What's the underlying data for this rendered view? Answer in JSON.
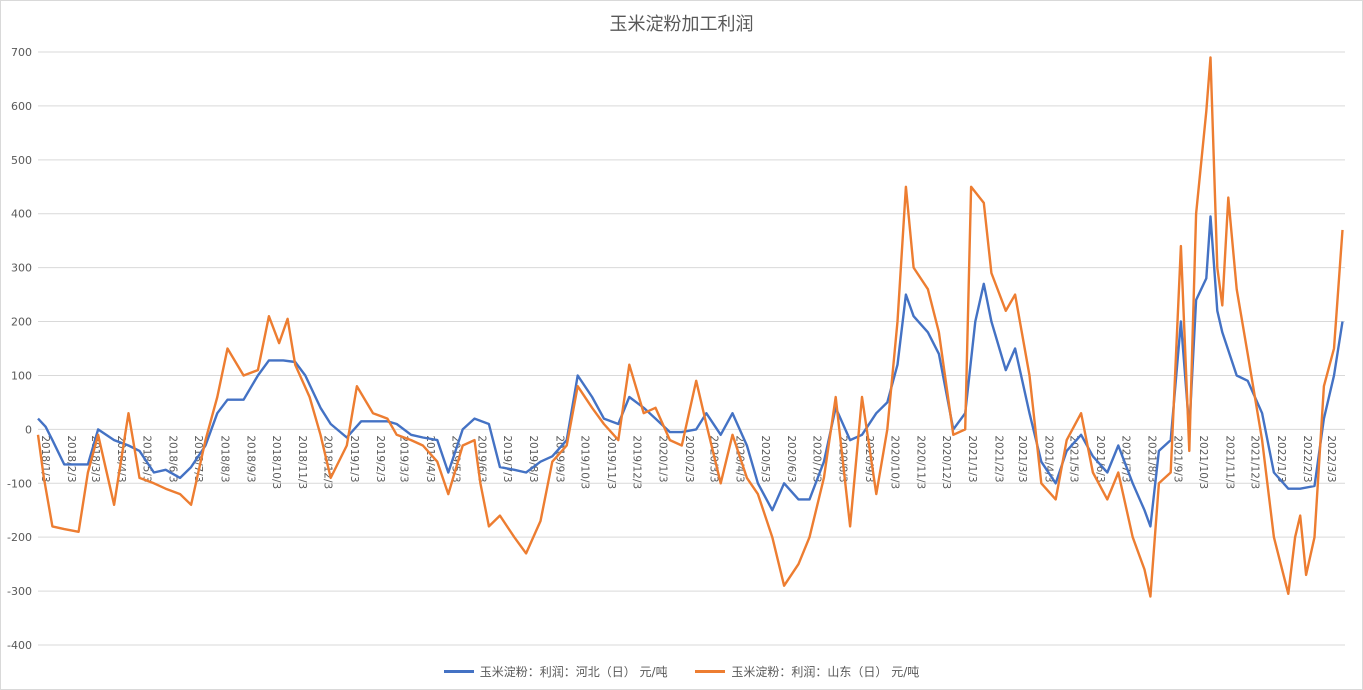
{
  "chart_data": {
    "type": "line",
    "title": "玉米淀粉加工利润",
    "xlabel": "",
    "ylabel": "",
    "ylim": [
      -400,
      700
    ],
    "yticks": [
      700,
      600,
      500,
      400,
      300,
      200,
      100,
      0,
      -100,
      -200,
      -300,
      -400
    ],
    "grid": true,
    "legend_position": "bottom",
    "x_tick_labels": [
      "2018/1/3",
      "2018/2/3",
      "2018/3/3",
      "2018/4/3",
      "2018/5/3",
      "2018/6/3",
      "2018/7/3",
      "2018/8/3",
      "2018/9/3",
      "2018/10/3",
      "2018/11/3",
      "2018/12/3",
      "2019/1/3",
      "2019/2/3",
      "2019/3/3",
      "2019/4/3",
      "2019/5/3",
      "2019/6/3",
      "2019/7/3",
      "2019/8/3",
      "2019/9/3",
      "2019/10/3",
      "2019/11/3",
      "2019/12/3",
      "2020/1/3",
      "2020/2/3",
      "2020/3/3",
      "2020/4/3",
      "2020/5/3",
      "2020/6/3",
      "2020/7/3",
      "2020/8/3",
      "2020/9/3",
      "2020/10/3",
      "2020/11/3",
      "2020/12/3",
      "2021/1/3",
      "2021/2/3",
      "2021/3/3",
      "2021/4/3",
      "2021/5/3",
      "2021/6/3",
      "2021/7/3",
      "2021/8/3",
      "2021/9/3",
      "2021/10/3",
      "2021/11/3",
      "2021/12/3",
      "2022/1/3",
      "2022/2/3",
      "2022/3/3"
    ],
    "series": [
      {
        "name": "玉米淀粉：利润：河北（日） 元/吨",
        "color": "#4472C4",
        "points": [
          [
            "2018/1/3",
            20
          ],
          [
            "2018/1/12",
            5
          ],
          [
            "2018/1/20",
            -20
          ],
          [
            "2018/2/3",
            -65
          ],
          [
            "2018/3/3",
            -65
          ],
          [
            "2018/3/15",
            0
          ],
          [
            "2018/4/3",
            -20
          ],
          [
            "2018/4/20",
            -30
          ],
          [
            "2018/5/3",
            -40
          ],
          [
            "2018/5/20",
            -80
          ],
          [
            "2018/6/3",
            -75
          ],
          [
            "2018/6/20",
            -90
          ],
          [
            "2018/7/3",
            -70
          ],
          [
            "2018/7/20",
            -30
          ],
          [
            "2018/8/3",
            30
          ],
          [
            "2018/8/15",
            55
          ],
          [
            "2018/9/3",
            55
          ],
          [
            "2018/9/20",
            100
          ],
          [
            "2018/10/3",
            128
          ],
          [
            "2018/10/20",
            128
          ],
          [
            "2018/11/3",
            125
          ],
          [
            "2018/11/15",
            100
          ],
          [
            "2018/12/3",
            40
          ],
          [
            "2018/12/15",
            10
          ],
          [
            "2019/1/3",
            -15
          ],
          [
            "2019/1/20",
            15
          ],
          [
            "2019/2/3",
            15
          ],
          [
            "2019/2/20",
            15
          ],
          [
            "2019/3/3",
            10
          ],
          [
            "2019/3/20",
            -10
          ],
          [
            "2019/4/3",
            -15
          ],
          [
            "2019/4/20",
            -20
          ],
          [
            "2019/5/3",
            -80
          ],
          [
            "2019/5/20",
            0
          ],
          [
            "2019/6/3",
            20
          ],
          [
            "2019/6/20",
            10
          ],
          [
            "2019/7/3",
            -70
          ],
          [
            "2019/7/20",
            -75
          ],
          [
            "2019/8/3",
            -80
          ],
          [
            "2019/8/20",
            -60
          ],
          [
            "2019/9/3",
            -50
          ],
          [
            "2019/9/20",
            -20
          ],
          [
            "2019/10/3",
            100
          ],
          [
            "2019/10/20",
            60
          ],
          [
            "2019/11/3",
            20
          ],
          [
            "2019/11/20",
            10
          ],
          [
            "2019/12/3",
            60
          ],
          [
            "2019/12/20",
            40
          ],
          [
            "2020/1/3",
            20
          ],
          [
            "2020/1/20",
            -5
          ],
          [
            "2020/2/3",
            -5
          ],
          [
            "2020/2/20",
            0
          ],
          [
            "2020/3/3",
            30
          ],
          [
            "2020/3/20",
            -10
          ],
          [
            "2020/4/3",
            30
          ],
          [
            "2020/4/20",
            -30
          ],
          [
            "2020/5/3",
            -100
          ],
          [
            "2020/5/20",
            -150
          ],
          [
            "2020/6/3",
            -100
          ],
          [
            "2020/6/20",
            -130
          ],
          [
            "2020/7/3",
            -130
          ],
          [
            "2020/7/20",
            -60
          ],
          [
            "2020/8/3",
            40
          ],
          [
            "2020/8/20",
            -20
          ],
          [
            "2020/9/3",
            -10
          ],
          [
            "2020/9/20",
            30
          ],
          [
            "2020/10/3",
            50
          ],
          [
            "2020/10/15",
            120
          ],
          [
            "2020/10/25",
            250
          ],
          [
            "2020/11/3",
            210
          ],
          [
            "2020/11/20",
            180
          ],
          [
            "2020/12/3",
            140
          ],
          [
            "2020/12/20",
            0
          ],
          [
            "2021/1/3",
            30
          ],
          [
            "2021/1/15",
            200
          ],
          [
            "2021/1/25",
            270
          ],
          [
            "2021/2/3",
            200
          ],
          [
            "2021/2/20",
            110
          ],
          [
            "2021/3/3",
            150
          ],
          [
            "2021/3/20",
            30
          ],
          [
            "2021/4/3",
            -60
          ],
          [
            "2021/4/20",
            -100
          ],
          [
            "2021/5/3",
            -40
          ],
          [
            "2021/5/20",
            -10
          ],
          [
            "2021/6/3",
            -50
          ],
          [
            "2021/6/20",
            -80
          ],
          [
            "2021/7/3",
            -30
          ],
          [
            "2021/7/20",
            -100
          ],
          [
            "2021/8/3",
            -150
          ],
          [
            "2021/8/10",
            -180
          ],
          [
            "2021/8/20",
            -40
          ],
          [
            "2021/9/3",
            -20
          ],
          [
            "2021/9/15",
            200
          ],
          [
            "2021/9/25",
            0
          ],
          [
            "2021/10/3",
            240
          ],
          [
            "2021/10/15",
            280
          ],
          [
            "2021/10/20",
            395
          ],
          [
            "2021/10/28",
            220
          ],
          [
            "2021/11/3",
            180
          ],
          [
            "2021/11/20",
            100
          ],
          [
            "2021/12/3",
            90
          ],
          [
            "2021/12/20",
            30
          ],
          [
            "2022/1/3",
            -80
          ],
          [
            "2022/1/20",
            -110
          ],
          [
            "2022/2/3",
            -110
          ],
          [
            "2022/2/20",
            -105
          ],
          [
            "2022/3/3",
            20
          ],
          [
            "2022/3/15",
            100
          ],
          [
            "2022/3/25",
            200
          ]
        ]
      },
      {
        "name": "玉米淀粉：利润：山东（日） 元/吨",
        "color": "#ED7D31",
        "points": [
          [
            "2018/1/3",
            -10
          ],
          [
            "2018/1/10",
            -90
          ],
          [
            "2018/1/20",
            -180
          ],
          [
            "2018/2/3",
            -185
          ],
          [
            "2018/2/20",
            -190
          ],
          [
            "2018/3/3",
            -80
          ],
          [
            "2018/3/15",
            -10
          ],
          [
            "2018/4/3",
            -140
          ],
          [
            "2018/4/20",
            30
          ],
          [
            "2018/5/3",
            -90
          ],
          [
            "2018/5/20",
            -100
          ],
          [
            "2018/6/3",
            -110
          ],
          [
            "2018/6/20",
            -120
          ],
          [
            "2018/7/3",
            -140
          ],
          [
            "2018/7/20",
            -20
          ],
          [
            "2018/8/3",
            60
          ],
          [
            "2018/8/15",
            150
          ],
          [
            "2018/9/3",
            100
          ],
          [
            "2018/9/20",
            110
          ],
          [
            "2018/10/3",
            210
          ],
          [
            "2018/10/15",
            160
          ],
          [
            "2018/10/25",
            205
          ],
          [
            "2018/11/3",
            120
          ],
          [
            "2018/11/20",
            60
          ],
          [
            "2018/12/3",
            -10
          ],
          [
            "2018/12/15",
            -90
          ],
          [
            "2019/1/3",
            -30
          ],
          [
            "2019/1/15",
            80
          ],
          [
            "2019/2/3",
            30
          ],
          [
            "2019/2/20",
            20
          ],
          [
            "2019/3/3",
            -10
          ],
          [
            "2019/3/20",
            -20
          ],
          [
            "2019/4/3",
            -30
          ],
          [
            "2019/4/20",
            -60
          ],
          [
            "2019/5/3",
            -120
          ],
          [
            "2019/5/20",
            -30
          ],
          [
            "2019/6/3",
            -20
          ],
          [
            "2019/6/10",
            -100
          ],
          [
            "2019/6/20",
            -180
          ],
          [
            "2019/7/3",
            -160
          ],
          [
            "2019/7/20",
            -200
          ],
          [
            "2019/8/3",
            -230
          ],
          [
            "2019/8/20",
            -170
          ],
          [
            "2019/9/3",
            -60
          ],
          [
            "2019/9/20",
            -30
          ],
          [
            "2019/10/3",
            80
          ],
          [
            "2019/10/20",
            40
          ],
          [
            "2019/11/3",
            10
          ],
          [
            "2019/11/20",
            -20
          ],
          [
            "2019/12/3",
            120
          ],
          [
            "2019/12/20",
            30
          ],
          [
            "2020/1/3",
            40
          ],
          [
            "2020/1/20",
            -20
          ],
          [
            "2020/2/3",
            -30
          ],
          [
            "2020/2/20",
            90
          ],
          [
            "2020/3/3",
            10
          ],
          [
            "2020/3/20",
            -100
          ],
          [
            "2020/4/3",
            -10
          ],
          [
            "2020/4/20",
            -90
          ],
          [
            "2020/5/3",
            -120
          ],
          [
            "2020/5/20",
            -200
          ],
          [
            "2020/6/3",
            -290
          ],
          [
            "2020/6/20",
            -250
          ],
          [
            "2020/7/3",
            -200
          ],
          [
            "2020/7/20",
            -90
          ],
          [
            "2020/8/3",
            60
          ],
          [
            "2020/8/20",
            -180
          ],
          [
            "2020/9/3",
            60
          ],
          [
            "2020/9/20",
            -120
          ],
          [
            "2020/10/3",
            0
          ],
          [
            "2020/10/15",
            200
          ],
          [
            "2020/10/25",
            450
          ],
          [
            "2020/11/3",
            300
          ],
          [
            "2020/11/20",
            260
          ],
          [
            "2020/12/3",
            180
          ],
          [
            "2020/12/20",
            -10
          ],
          [
            "2021/1/3",
            0
          ],
          [
            "2021/1/10",
            450
          ],
          [
            "2021/1/25",
            420
          ],
          [
            "2021/2/3",
            290
          ],
          [
            "2021/2/20",
            220
          ],
          [
            "2021/3/3",
            250
          ],
          [
            "2021/3/20",
            100
          ],
          [
            "2021/4/3",
            -100
          ],
          [
            "2021/4/20",
            -130
          ],
          [
            "2021/5/3",
            -20
          ],
          [
            "2021/5/20",
            30
          ],
          [
            "2021/6/3",
            -80
          ],
          [
            "2021/6/20",
            -130
          ],
          [
            "2021/7/3",
            -80
          ],
          [
            "2021/7/20",
            -200
          ],
          [
            "2021/8/3",
            -260
          ],
          [
            "2021/8/10",
            -310
          ],
          [
            "2021/8/20",
            -100
          ],
          [
            "2021/9/3",
            -80
          ],
          [
            "2021/9/15",
            340
          ],
          [
            "2021/9/25",
            -40
          ],
          [
            "2021/10/3",
            400
          ],
          [
            "2021/10/15",
            590
          ],
          [
            "2021/10/20",
            690
          ],
          [
            "2021/10/28",
            300
          ],
          [
            "2021/11/3",
            230
          ],
          [
            "2021/11/10",
            430
          ],
          [
            "2021/11/20",
            260
          ],
          [
            "2021/12/3",
            140
          ],
          [
            "2021/12/20",
            -20
          ],
          [
            "2022/1/3",
            -200
          ],
          [
            "2022/1/20",
            -305
          ],
          [
            "2022/1/28",
            -200
          ],
          [
            "2022/2/3",
            -160
          ],
          [
            "2022/2/10",
            -270
          ],
          [
            "2022/2/20",
            -200
          ],
          [
            "2022/3/3",
            80
          ],
          [
            "2022/3/15",
            150
          ],
          [
            "2022/3/25",
            370
          ]
        ]
      }
    ]
  }
}
